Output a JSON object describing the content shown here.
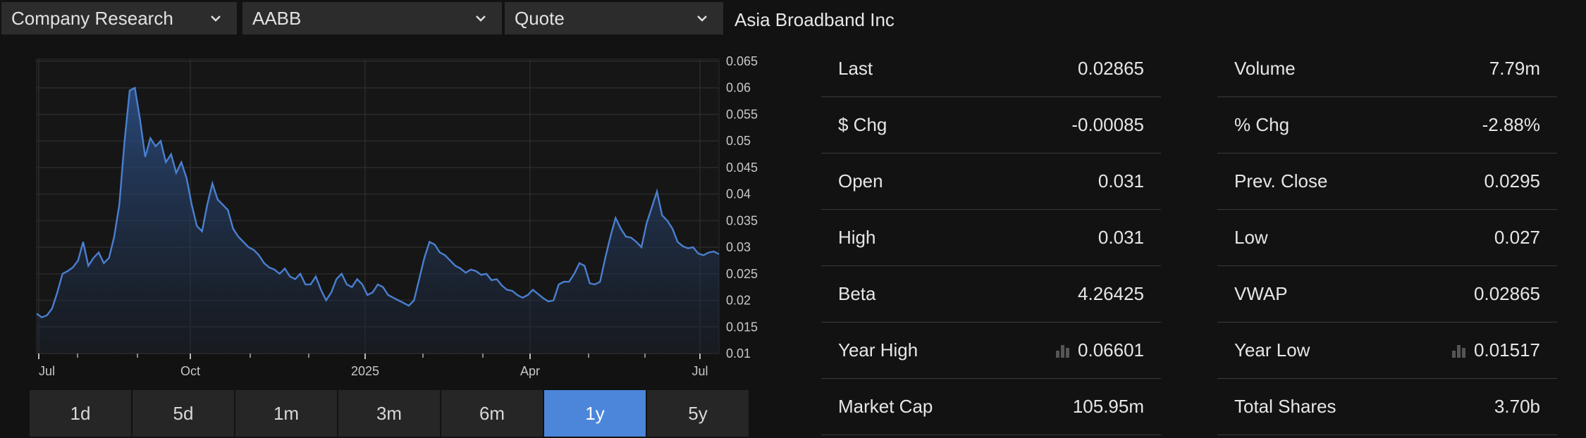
{
  "topbar": {
    "dropdown1": "Company Research",
    "dropdown2": "AABB",
    "dropdown3": "Quote",
    "company_name": "Asia Broadband Inc"
  },
  "chart_data": {
    "type": "area",
    "x_ticks": [
      "Jul",
      "Oct",
      "2025",
      "Apr",
      "Jul"
    ],
    "y_ticks": [
      "0.065",
      "0.06",
      "0.055",
      "0.05",
      "0.045",
      "0.04",
      "0.035",
      "0.03",
      "0.025",
      "0.02",
      "0.015",
      "0.01"
    ],
    "ylim": [
      0.01,
      0.065
    ],
    "line_color": "#4a7fd0",
    "values": [
      0.0175,
      0.0168,
      0.0172,
      0.0185,
      0.0215,
      0.025,
      0.0255,
      0.0262,
      0.0275,
      0.031,
      0.0265,
      0.028,
      0.029,
      0.027,
      0.028,
      0.032,
      0.038,
      0.05,
      0.0595,
      0.06,
      0.054,
      0.047,
      0.0505,
      0.049,
      0.05,
      0.046,
      0.0475,
      0.044,
      0.046,
      0.043,
      0.038,
      0.034,
      0.033,
      0.038,
      0.042,
      0.039,
      0.038,
      0.037,
      0.0335,
      0.032,
      0.031,
      0.03,
      0.0295,
      0.0285,
      0.027,
      0.0262,
      0.0258,
      0.025,
      0.026,
      0.0245,
      0.024,
      0.025,
      0.023,
      0.023,
      0.0245,
      0.022,
      0.02,
      0.0215,
      0.024,
      0.025,
      0.023,
      0.0225,
      0.024,
      0.023,
      0.021,
      0.0215,
      0.023,
      0.0225,
      0.021,
      0.0205,
      0.02,
      0.0195,
      0.019,
      0.02,
      0.024,
      0.028,
      0.031,
      0.0305,
      0.029,
      0.0285,
      0.0275,
      0.0265,
      0.026,
      0.0252,
      0.0258,
      0.0255,
      0.0248,
      0.025,
      0.0238,
      0.024,
      0.0228,
      0.022,
      0.0218,
      0.021,
      0.0205,
      0.021,
      0.022,
      0.0212,
      0.0204,
      0.0198,
      0.02,
      0.023,
      0.0235,
      0.0235,
      0.025,
      0.027,
      0.0265,
      0.0232,
      0.023,
      0.0235,
      0.028,
      0.032,
      0.0355,
      0.0335,
      0.032,
      0.0318,
      0.031,
      0.03,
      0.0345,
      0.0375,
      0.0405,
      0.036,
      0.035,
      0.0335,
      0.031,
      0.0302,
      0.0298,
      0.03,
      0.0288,
      0.0285,
      0.029,
      0.0292,
      0.0287
    ]
  },
  "ranges": [
    {
      "label": "1d",
      "active": false
    },
    {
      "label": "5d",
      "active": false
    },
    {
      "label": "1m",
      "active": false
    },
    {
      "label": "3m",
      "active": false
    },
    {
      "label": "6m",
      "active": false
    },
    {
      "label": "1y",
      "active": true
    },
    {
      "label": "5y",
      "active": false
    }
  ],
  "stats_left": [
    {
      "label": "Last",
      "value": "0.02865"
    },
    {
      "label": "$  Chg",
      "value": "-0.00085"
    },
    {
      "label": "Open",
      "value": "0.031"
    },
    {
      "label": "High",
      "value": "0.031"
    },
    {
      "label": "Beta",
      "value": "4.26425"
    },
    {
      "label": "Year High",
      "value": "0.06601",
      "icon": "bar-chart-icon"
    },
    {
      "label": "Market Cap",
      "value": "105.95m"
    }
  ],
  "stats_right": [
    {
      "label": "Volume",
      "value": "7.79m"
    },
    {
      "label": "% Chg",
      "value": "-2.88%"
    },
    {
      "label": "Prev. Close",
      "value": "0.0295"
    },
    {
      "label": "Low",
      "value": "0.027"
    },
    {
      "label": "VWAP",
      "value": "0.02865"
    },
    {
      "label": "Year Low",
      "value": "0.01517",
      "icon": "bar-chart-icon"
    },
    {
      "label": "Total Shares",
      "value": "3.70b"
    }
  ],
  "colors": {
    "accent": "#4b86db",
    "background": "#121212",
    "dropdown_bg": "#2c2c2c"
  }
}
